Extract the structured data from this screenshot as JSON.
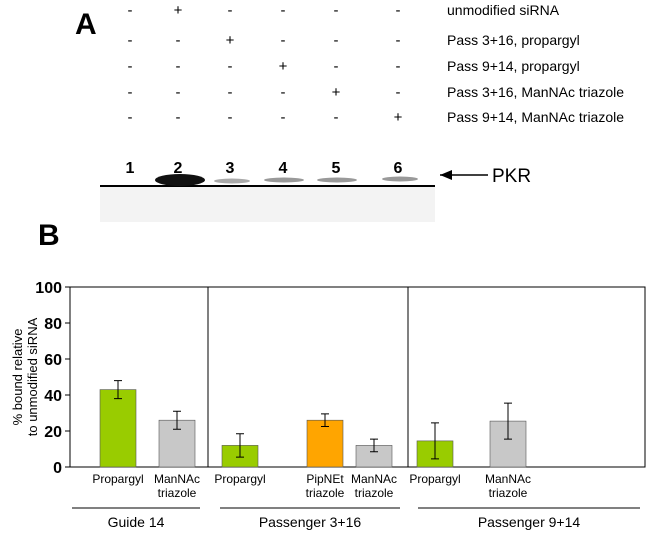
{
  "panel_a": {
    "label": "A",
    "treatments": [
      {
        "name": "unmodified siRNA",
        "signs": [
          "-",
          "+",
          "-",
          "-",
          "-",
          "-"
        ]
      },
      {
        "name": "Pass 3+16, propargyl",
        "signs": [
          "-",
          "-",
          "+",
          "-",
          "-",
          "-"
        ]
      },
      {
        "name": "Pass 9+14, propargyl",
        "signs": [
          "-",
          "-",
          "-",
          "+",
          "-",
          "-"
        ]
      },
      {
        "name": "Pass 3+16, ManNAc triazole",
        "signs": [
          "-",
          "-",
          "-",
          "-",
          "+",
          "-"
        ]
      },
      {
        "name": "Pass 9+14, ManNAc triazole",
        "signs": [
          "-",
          "-",
          "-",
          "-",
          "-",
          "+"
        ]
      }
    ],
    "lanes": [
      "1",
      "2",
      "3",
      "4",
      "5",
      "6"
    ],
    "band_label": "PKR"
  },
  "chart_data": {
    "type": "bar",
    "panel_label": "B",
    "ylabel": "% bound relative to unmodified siRNA",
    "categories": [
      "Propargyl",
      "ManNAc triazole",
      "Propargyl",
      "PipNEt triazole",
      "ManNAc triazole",
      "Propargyl",
      "ManNAc triazole"
    ],
    "values": [
      43,
      26,
      12,
      26,
      12,
      14.5,
      25.5
    ],
    "errors": [
      5,
      5,
      6.5,
      3.5,
      3.5,
      10,
      10
    ],
    "colors": [
      "#99cc00",
      "#c8c8c8",
      "#99cc00",
      "#ffa500",
      "#c8c8c8",
      "#99cc00",
      "#c8c8c8"
    ],
    "groups": [
      {
        "name": "Guide 14",
        "size": 2
      },
      {
        "name": "Passenger 3+16",
        "size": 3
      },
      {
        "name": "Passenger 9+14",
        "size": 2
      }
    ],
    "ylim": [
      0,
      100
    ],
    "yticks": [
      0,
      20,
      40,
      60,
      80,
      100
    ]
  }
}
